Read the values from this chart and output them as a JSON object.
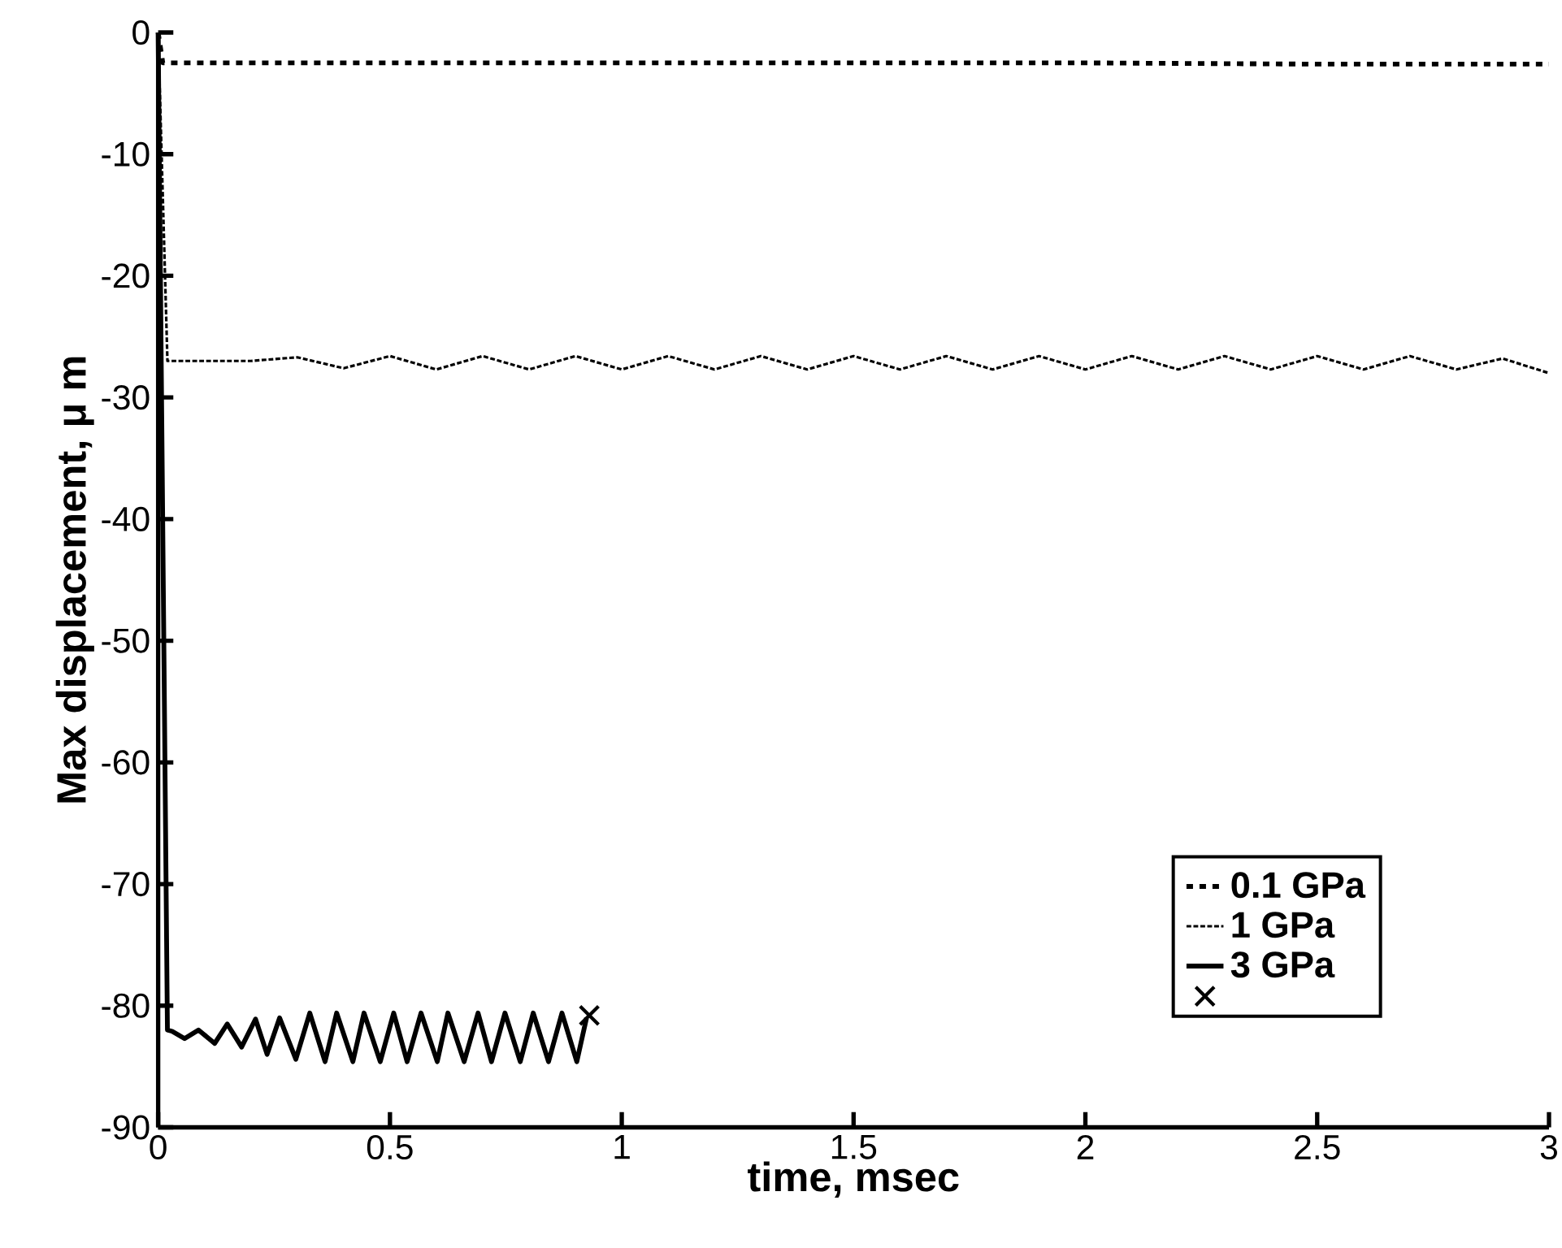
{
  "chart_data": {
    "type": "line",
    "xlabel": "time, msec",
    "ylabel": "Max displacement, μ m",
    "xlim": [
      0,
      3
    ],
    "ylim": [
      -90,
      0
    ],
    "xticks": [
      0,
      0.5,
      1,
      1.5,
      2,
      2.5,
      3
    ],
    "yticks": [
      -90,
      -80,
      -70,
      -60,
      -50,
      -40,
      -30,
      -20,
      -10,
      0
    ],
    "legend": "bottom right",
    "series": [
      {
        "name": "0.1 GPa",
        "color": "#000000",
        "line_style": "dashed",
        "x": [
          0,
          0.01,
          0.5,
          1,
          1.5,
          2,
          2.5,
          3
        ],
        "values": [
          0,
          -2.5,
          -2.5,
          -2.5,
          -2.5,
          -2.5,
          -2.6,
          -2.6
        ]
      },
      {
        "name": "1 GPa",
        "color": "#000000",
        "line_style": "dotted",
        "x": [
          0,
          0.02,
          0.1,
          0.2,
          0.3,
          0.4,
          0.5,
          0.6,
          0.7,
          0.8,
          0.9,
          1.0,
          1.1,
          1.2,
          1.3,
          1.4,
          1.5,
          1.6,
          1.7,
          1.8,
          1.9,
          2.0,
          2.1,
          2.2,
          2.3,
          2.4,
          2.5,
          2.6,
          2.7,
          2.8,
          2.9,
          3.0
        ],
        "values": [
          0,
          -27,
          -27,
          -27,
          -26.7,
          -27.6,
          -26.6,
          -27.7,
          -26.6,
          -27.7,
          -26.6,
          -27.7,
          -26.6,
          -27.7,
          -26.6,
          -27.7,
          -26.6,
          -27.7,
          -26.6,
          -27.7,
          -26.6,
          -27.7,
          -26.6,
          -27.7,
          -26.6,
          -27.7,
          -26.6,
          -27.7,
          -26.6,
          -27.7,
          -26.8,
          -28
        ]
      },
      {
        "name": "3 GPa",
        "color": "#000000",
        "line_style": "solid",
        "x": [
          0,
          0.02,
          0.03,
          0.057,
          0.087,
          0.122,
          0.149,
          0.18,
          0.21,
          0.235,
          0.262,
          0.297,
          0.327,
          0.36,
          0.385,
          0.42,
          0.444,
          0.479,
          0.508,
          0.537,
          0.567,
          0.602,
          0.625,
          0.66,
          0.69,
          0.719,
          0.748,
          0.781,
          0.809,
          0.842,
          0.871,
          0.903,
          0.924
        ],
        "values": [
          0,
          -82,
          -82.1,
          -82.7,
          -82,
          -83.1,
          -81.5,
          -83.4,
          -81.1,
          -84,
          -81,
          -84.4,
          -80.6,
          -84.6,
          -80.6,
          -84.6,
          -80.6,
          -84.6,
          -80.6,
          -84.6,
          -80.6,
          -84.6,
          -80.6,
          -84.6,
          -80.6,
          -84.6,
          -80.6,
          -84.6,
          -80.6,
          -84.6,
          -80.6,
          -84.6,
          -81
        ]
      },
      {
        "type": "scatter",
        "marker": "cross",
        "color": "#000000",
        "x": [
          0.93
        ],
        "values": [
          -80.8
        ]
      }
    ]
  }
}
